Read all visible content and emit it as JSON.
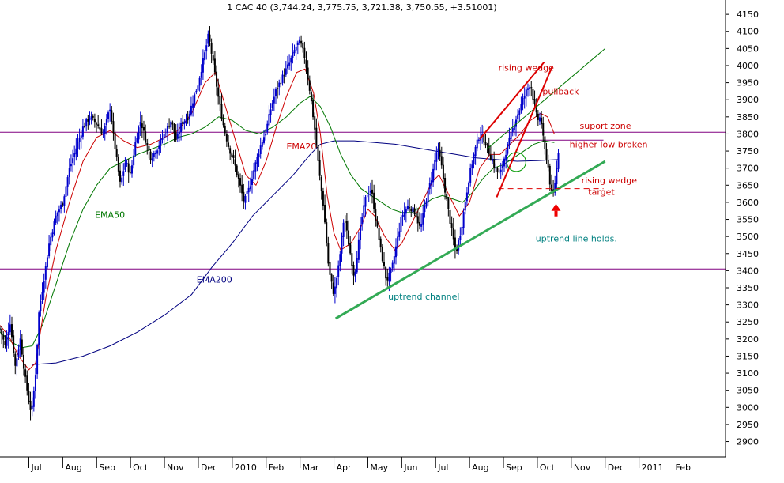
{
  "chart_data": {
    "type": "candlestick",
    "title": "1 CAC 40 (3,744.24, 3,775.75, 3,721.38, 3,750.55, +3.51001)",
    "ylim": [
      2855,
      4185
    ],
    "y_ticks": [
      4150,
      4100,
      4050,
      4000,
      3950,
      3900,
      3850,
      3800,
      3750,
      3700,
      3650,
      3600,
      3550,
      3500,
      3450,
      3400,
      3350,
      3300,
      3250,
      3200,
      3150,
      3100,
      3050,
      3000,
      2950,
      2900
    ],
    "x_ticks": [
      "Jul",
      "Aug",
      "Sep",
      "Oct",
      "Nov",
      "Dec",
      "2010",
      "Feb",
      "Mar",
      "Apr",
      "May",
      "Jun",
      "Jul",
      "Aug",
      "Sep",
      "Oct",
      "Nov",
      "Dec",
      "2011",
      "Feb"
    ],
    "x_tick_months": [
      0,
      1,
      2,
      3,
      4,
      5,
      6,
      7,
      8,
      9,
      10,
      11,
      12,
      13,
      14,
      15,
      16,
      17,
      18,
      19
    ],
    "x_range_months": [
      -0.85,
      20.55
    ],
    "price_path": [
      [
        -0.85,
        3230
      ],
      [
        -0.7,
        3180
      ],
      [
        -0.55,
        3250
      ],
      [
        -0.4,
        3120
      ],
      [
        -0.25,
        3200
      ],
      [
        -0.1,
        3080
      ],
      [
        0.0,
        3020
      ],
      [
        0.08,
        2980
      ],
      [
        0.2,
        3100
      ],
      [
        0.3,
        3280
      ],
      [
        0.45,
        3380
      ],
      [
        0.6,
        3480
      ],
      [
        0.8,
        3560
      ],
      [
        1.0,
        3600
      ],
      [
        1.2,
        3700
      ],
      [
        1.4,
        3760
      ],
      [
        1.6,
        3820
      ],
      [
        1.8,
        3850
      ],
      [
        2.0,
        3830
      ],
      [
        2.2,
        3800
      ],
      [
        2.4,
        3880
      ],
      [
        2.5,
        3790
      ],
      [
        2.7,
        3650
      ],
      [
        2.85,
        3720
      ],
      [
        3.0,
        3680
      ],
      [
        3.15,
        3780
      ],
      [
        3.3,
        3840
      ],
      [
        3.45,
        3780
      ],
      [
        3.6,
        3730
      ],
      [
        3.8,
        3760
      ],
      [
        4.0,
        3800
      ],
      [
        4.2,
        3840
      ],
      [
        4.35,
        3780
      ],
      [
        4.5,
        3830
      ],
      [
        4.7,
        3850
      ],
      [
        4.85,
        3900
      ],
      [
        5.0,
        3950
      ],
      [
        5.2,
        4040
      ],
      [
        5.3,
        4090
      ],
      [
        5.45,
        4000
      ],
      [
        5.6,
        3900
      ],
      [
        5.75,
        3820
      ],
      [
        5.9,
        3760
      ],
      [
        6.05,
        3720
      ],
      [
        6.2,
        3660
      ],
      [
        6.35,
        3600
      ],
      [
        6.5,
        3640
      ],
      [
        6.65,
        3700
      ],
      [
        6.85,
        3770
      ],
      [
        7.0,
        3810
      ],
      [
        7.15,
        3880
      ],
      [
        7.3,
        3930
      ],
      [
        7.5,
        3970
      ],
      [
        7.7,
        4010
      ],
      [
        7.9,
        4060
      ],
      [
        8.0,
        4070
      ],
      [
        8.15,
        4020
      ],
      [
        8.3,
        3920
      ],
      [
        8.45,
        3800
      ],
      [
        8.55,
        3700
      ],
      [
        8.7,
        3580
      ],
      [
        8.85,
        3400
      ],
      [
        9.0,
        3330
      ],
      [
        9.15,
        3420
      ],
      [
        9.3,
        3560
      ],
      [
        9.45,
        3470
      ],
      [
        9.6,
        3380
      ],
      [
        9.8,
        3540
      ],
      [
        9.95,
        3620
      ],
      [
        10.1,
        3640
      ],
      [
        10.25,
        3540
      ],
      [
        10.4,
        3450
      ],
      [
        10.55,
        3370
      ],
      [
        10.7,
        3400
      ],
      [
        10.85,
        3480
      ],
      [
        11.0,
        3560
      ],
      [
        11.2,
        3590
      ],
      [
        11.4,
        3570
      ],
      [
        11.55,
        3520
      ],
      [
        11.7,
        3600
      ],
      [
        11.9,
        3680
      ],
      [
        12.05,
        3760
      ],
      [
        12.15,
        3720
      ],
      [
        12.3,
        3620
      ],
      [
        12.45,
        3530
      ],
      [
        12.6,
        3450
      ],
      [
        12.75,
        3520
      ],
      [
        12.9,
        3620
      ],
      [
        13.0,
        3680
      ],
      [
        13.15,
        3750
      ],
      [
        13.3,
        3800
      ],
      [
        13.45,
        3780
      ],
      [
        13.6,
        3740
      ],
      [
        13.75,
        3700
      ],
      [
        13.9,
        3680
      ],
      [
        14.05,
        3740
      ],
      [
        14.2,
        3790
      ],
      [
        14.35,
        3840
      ],
      [
        14.5,
        3880
      ],
      [
        14.65,
        3920
      ],
      [
        14.8,
        3950
      ],
      [
        14.9,
        3890
      ],
      [
        15.0,
        3840
      ],
      [
        15.1,
        3850
      ],
      [
        15.2,
        3760
      ],
      [
        15.3,
        3720
      ],
      [
        15.38,
        3650
      ],
      [
        15.45,
        3610
      ],
      [
        15.55,
        3680
      ],
      [
        15.62,
        3750
      ]
    ],
    "ema20_path": [
      [
        -0.85,
        3240
      ],
      [
        -0.6,
        3210
      ],
      [
        -0.3,
        3150
      ],
      [
        0.0,
        3110
      ],
      [
        0.2,
        3130
      ],
      [
        0.5,
        3320
      ],
      [
        0.8,
        3460
      ],
      [
        1.2,
        3600
      ],
      [
        1.6,
        3720
      ],
      [
        2.0,
        3790
      ],
      [
        2.4,
        3810
      ],
      [
        2.8,
        3780
      ],
      [
        3.2,
        3760
      ],
      [
        3.6,
        3770
      ],
      [
        4.0,
        3790
      ],
      [
        4.4,
        3810
      ],
      [
        4.8,
        3860
      ],
      [
        5.2,
        3950
      ],
      [
        5.5,
        3980
      ],
      [
        5.8,
        3880
      ],
      [
        6.1,
        3780
      ],
      [
        6.4,
        3680
      ],
      [
        6.7,
        3650
      ],
      [
        7.0,
        3720
      ],
      [
        7.3,
        3820
      ],
      [
        7.6,
        3910
      ],
      [
        7.9,
        3980
      ],
      [
        8.15,
        3990
      ],
      [
        8.4,
        3920
      ],
      [
        8.6,
        3800
      ],
      [
        8.8,
        3620
      ],
      [
        9.0,
        3510
      ],
      [
        9.2,
        3460
      ],
      [
        9.5,
        3480
      ],
      [
        9.8,
        3530
      ],
      [
        10.0,
        3580
      ],
      [
        10.2,
        3560
      ],
      [
        10.5,
        3500
      ],
      [
        10.8,
        3460
      ],
      [
        11.0,
        3480
      ],
      [
        11.3,
        3540
      ],
      [
        11.6,
        3600
      ],
      [
        11.9,
        3660
      ],
      [
        12.1,
        3680
      ],
      [
        12.4,
        3620
      ],
      [
        12.7,
        3560
      ],
      [
        13.0,
        3600
      ],
      [
        13.3,
        3700
      ],
      [
        13.6,
        3740
      ],
      [
        13.9,
        3740
      ],
      [
        14.2,
        3770
      ],
      [
        14.5,
        3800
      ],
      [
        14.8,
        3840
      ],
      [
        15.1,
        3860
      ],
      [
        15.3,
        3850
      ],
      [
        15.5,
        3800
      ]
    ],
    "ema50_path": [
      [
        -0.85,
        3220
      ],
      [
        -0.5,
        3190
      ],
      [
        -0.2,
        3175
      ],
      [
        0.1,
        3180
      ],
      [
        0.4,
        3240
      ],
      [
        0.8,
        3360
      ],
      [
        1.2,
        3480
      ],
      [
        1.6,
        3580
      ],
      [
        2.0,
        3650
      ],
      [
        2.4,
        3700
      ],
      [
        2.8,
        3720
      ],
      [
        3.2,
        3740
      ],
      [
        3.6,
        3755
      ],
      [
        4.0,
        3770
      ],
      [
        4.4,
        3790
      ],
      [
        4.8,
        3800
      ],
      [
        5.2,
        3820
      ],
      [
        5.6,
        3850
      ],
      [
        6.0,
        3840
      ],
      [
        6.4,
        3810
      ],
      [
        6.8,
        3800
      ],
      [
        7.2,
        3820
      ],
      [
        7.6,
        3850
      ],
      [
        8.0,
        3890
      ],
      [
        8.3,
        3910
      ],
      [
        8.6,
        3880
      ],
      [
        8.9,
        3820
      ],
      [
        9.2,
        3740
      ],
      [
        9.5,
        3680
      ],
      [
        9.8,
        3640
      ],
      [
        10.1,
        3620
      ],
      [
        10.4,
        3600
      ],
      [
        10.7,
        3580
      ],
      [
        11.0,
        3570
      ],
      [
        11.3,
        3570
      ],
      [
        11.6,
        3590
      ],
      [
        11.9,
        3610
      ],
      [
        12.2,
        3620
      ],
      [
        12.5,
        3610
      ],
      [
        12.8,
        3600
      ],
      [
        13.1,
        3630
      ],
      [
        13.4,
        3670
      ],
      [
        13.7,
        3700
      ],
      [
        14.0,
        3710
      ],
      [
        14.3,
        3730
      ],
      [
        14.6,
        3750
      ],
      [
        14.9,
        3770
      ],
      [
        15.2,
        3780
      ],
      [
        15.5,
        3775
      ]
    ],
    "ema200_path": [
      [
        0.1,
        3125
      ],
      [
        0.8,
        3130
      ],
      [
        1.6,
        3150
      ],
      [
        2.4,
        3180
      ],
      [
        3.2,
        3220
      ],
      [
        4.0,
        3270
      ],
      [
        4.8,
        3330
      ],
      [
        5.4,
        3410
      ],
      [
        6.0,
        3480
      ],
      [
        6.6,
        3560
      ],
      [
        7.2,
        3620
      ],
      [
        7.8,
        3680
      ],
      [
        8.3,
        3740
      ],
      [
        8.6,
        3770
      ],
      [
        9.0,
        3780
      ],
      [
        9.6,
        3780
      ],
      [
        10.2,
        3775
      ],
      [
        10.8,
        3770
      ],
      [
        11.4,
        3760
      ],
      [
        12.0,
        3750
      ],
      [
        12.6,
        3740
      ],
      [
        13.2,
        3730
      ],
      [
        13.8,
        3725
      ],
      [
        14.4,
        3720
      ],
      [
        15.0,
        3722
      ],
      [
        15.6,
        3725
      ]
    ],
    "levels": [
      3805,
      3405
    ],
    "support_zone": 3782,
    "uptrend_channel": [
      [
        9.05,
        3260
      ],
      [
        17.0,
        3720
      ]
    ],
    "channel_top": [
      [
        13.5,
        3755
      ],
      [
        17.0,
        4050
      ]
    ],
    "wedge_upper": [
      [
        13.3,
        3785
      ],
      [
        15.2,
        4010
      ]
    ],
    "wedge_lower": [
      [
        13.8,
        3615
      ],
      [
        15.45,
        4000
      ]
    ],
    "wedge_target": [
      [
        13.85,
        3640
      ],
      [
        16.95,
        3640
      ]
    ],
    "annotations": [
      {
        "text": "rising wedge",
        "x": 13.85,
        "y": 3985,
        "color": "#cc0000"
      },
      {
        "text": "pullback",
        "x": 15.15,
        "y": 3915,
        "color": "#cc0000"
      },
      {
        "text": "suport zone",
        "x": 16.25,
        "y": 3815,
        "color": "#cc0000"
      },
      {
        "text": "higher low broken",
        "x": 15.95,
        "y": 3760,
        "color": "#cc0000"
      },
      {
        "text": "rising wedge",
        "x": 16.3,
        "y": 3655,
        "color": "#cc0000"
      },
      {
        "text": "target",
        "x": 16.5,
        "y": 3622,
        "color": "#cc0000"
      },
      {
        "text": "uptrend line holds.",
        "x": 14.95,
        "y": 3485,
        "color": "#008080"
      },
      {
        "text": "uptrend channel",
        "x": 10.6,
        "y": 3315,
        "color": "#008080"
      },
      {
        "text": "EMA20",
        "x": 7.6,
        "y": 3755,
        "color": "#cc0000"
      },
      {
        "text": "EMA50",
        "x": 1.95,
        "y": 3555,
        "color": "#007700"
      },
      {
        "text": "EMA200",
        "x": 4.95,
        "y": 3365,
        "color": "#000080"
      }
    ],
    "grid": false,
    "colors": {
      "up": "#0000cc",
      "down": "#000000",
      "ema20": "#cc0000",
      "ema50": "#007700",
      "ema200": "#000080",
      "level": "#800080",
      "wedge": "#dd0000",
      "trend": "#33aa55"
    }
  }
}
